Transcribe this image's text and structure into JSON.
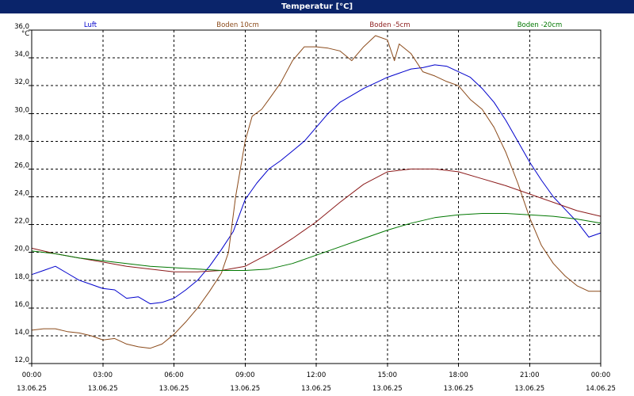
{
  "window": {
    "title": "Temperatur [°C]"
  },
  "chart_data": {
    "type": "line",
    "title": "Temperatur [°C]",
    "ylabel": "°C",
    "ylim": [
      12.0,
      36.0
    ],
    "y_ticks": [
      "12,0",
      "14,0",
      "16,0",
      "18,0",
      "20,0",
      "22,0",
      "24,0",
      "26,0",
      "28,0",
      "30,0",
      "32,0",
      "34,0",
      "36,0"
    ],
    "xlim": [
      0,
      24
    ],
    "x_ticks": [
      {
        "time": "00:00",
        "date": "13.06.25"
      },
      {
        "time": "03:00",
        "date": "13.06.25"
      },
      {
        "time": "06:00",
        "date": "13.06.25"
      },
      {
        "time": "09:00",
        "date": "13.06.25"
      },
      {
        "time": "12:00",
        "date": "13.06.25"
      },
      {
        "time": "15:00",
        "date": "13.06.25"
      },
      {
        "time": "18:00",
        "date": "13.06.25"
      },
      {
        "time": "21:00",
        "date": "13.06.25"
      },
      {
        "time": "00:00",
        "date": "14.06.25"
      }
    ],
    "grid": true,
    "legend_position": "top",
    "series": [
      {
        "name": "Luft",
        "color": "#0000cc",
        "points": [
          [
            0,
            18.4
          ],
          [
            0.5,
            18.7
          ],
          [
            1,
            19.0
          ],
          [
            1.5,
            18.5
          ],
          [
            2,
            18.0
          ],
          [
            2.5,
            17.7
          ],
          [
            3,
            17.4
          ],
          [
            3.5,
            17.3
          ],
          [
            4,
            16.7
          ],
          [
            4.5,
            16.8
          ],
          [
            5,
            16.3
          ],
          [
            5.5,
            16.4
          ],
          [
            6,
            16.7
          ],
          [
            6.5,
            17.3
          ],
          [
            7,
            18.0
          ],
          [
            7.5,
            19.0
          ],
          [
            8,
            20.2
          ],
          [
            8.5,
            21.5
          ],
          [
            9,
            23.8
          ],
          [
            9.5,
            25.0
          ],
          [
            10,
            26.0
          ],
          [
            10.5,
            26.6
          ],
          [
            11,
            27.3
          ],
          [
            11.5,
            28.0
          ],
          [
            12,
            29.0
          ],
          [
            12.5,
            30.0
          ],
          [
            13,
            30.8
          ],
          [
            13.5,
            31.3
          ],
          [
            14,
            31.8
          ],
          [
            14.5,
            32.2
          ],
          [
            15,
            32.6
          ],
          [
            15.5,
            32.9
          ],
          [
            16,
            33.2
          ],
          [
            16.5,
            33.3
          ],
          [
            17,
            33.5
          ],
          [
            17.5,
            33.4
          ],
          [
            18,
            33.0
          ],
          [
            18.5,
            32.6
          ],
          [
            19,
            31.8
          ],
          [
            19.5,
            30.8
          ],
          [
            20,
            29.5
          ],
          [
            20.5,
            28.0
          ],
          [
            21,
            26.5
          ],
          [
            21.5,
            25.2
          ],
          [
            22,
            24.0
          ],
          [
            22.5,
            23.1
          ],
          [
            23,
            22.2
          ],
          [
            23.5,
            21.1
          ],
          [
            24,
            21.4
          ]
        ]
      },
      {
        "name": "Boden 10cm",
        "color": "#8b4a1a",
        "points": [
          [
            0,
            14.4
          ],
          [
            0.5,
            14.5
          ],
          [
            1,
            14.5
          ],
          [
            1.5,
            14.3
          ],
          [
            2,
            14.2
          ],
          [
            2.5,
            14.0
          ],
          [
            3,
            13.7
          ],
          [
            3.5,
            13.8
          ],
          [
            4,
            13.4
          ],
          [
            4.5,
            13.2
          ],
          [
            5,
            13.1
          ],
          [
            5.5,
            13.4
          ],
          [
            6,
            14.1
          ],
          [
            6.5,
            15.0
          ],
          [
            7,
            16.0
          ],
          [
            7.5,
            17.2
          ],
          [
            8,
            18.5
          ],
          [
            8.3,
            20.0
          ],
          [
            8.6,
            24.0
          ],
          [
            9,
            28.0
          ],
          [
            9.3,
            29.8
          ],
          [
            9.7,
            30.3
          ],
          [
            10,
            31.0
          ],
          [
            10.5,
            32.2
          ],
          [
            11,
            33.8
          ],
          [
            11.5,
            34.8
          ],
          [
            12,
            34.8
          ],
          [
            12.5,
            34.7
          ],
          [
            13,
            34.5
          ],
          [
            13.5,
            33.8
          ],
          [
            14,
            34.8
          ],
          [
            14.5,
            35.6
          ],
          [
            15,
            35.3
          ],
          [
            15.3,
            33.8
          ],
          [
            15.5,
            35.0
          ],
          [
            16,
            34.3
          ],
          [
            16.5,
            33.0
          ],
          [
            17,
            32.7
          ],
          [
            17.5,
            32.3
          ],
          [
            18,
            32.0
          ],
          [
            18.5,
            31.0
          ],
          [
            19,
            30.3
          ],
          [
            19.5,
            29.0
          ],
          [
            20,
            27.2
          ],
          [
            20.5,
            25.0
          ],
          [
            21,
            22.5
          ],
          [
            21.5,
            20.5
          ],
          [
            22,
            19.2
          ],
          [
            22.5,
            18.3
          ],
          [
            23,
            17.6
          ],
          [
            23.5,
            17.2
          ],
          [
            24,
            17.2
          ]
        ]
      },
      {
        "name": "Boden -5cm",
        "color": "#8b1a1a",
        "points": [
          [
            0,
            20.3
          ],
          [
            1,
            19.9
          ],
          [
            2,
            19.6
          ],
          [
            3,
            19.3
          ],
          [
            4,
            19.0
          ],
          [
            5,
            18.8
          ],
          [
            6,
            18.6
          ],
          [
            7,
            18.6
          ],
          [
            8,
            18.7
          ],
          [
            9,
            19.0
          ],
          [
            10,
            19.9
          ],
          [
            11,
            21.0
          ],
          [
            12,
            22.2
          ],
          [
            13,
            23.6
          ],
          [
            14,
            24.9
          ],
          [
            15,
            25.8
          ],
          [
            16,
            26.0
          ],
          [
            17,
            26.0
          ],
          [
            18,
            25.8
          ],
          [
            19,
            25.3
          ],
          [
            20,
            24.8
          ],
          [
            21,
            24.2
          ],
          [
            22,
            23.6
          ],
          [
            23,
            23.0
          ],
          [
            24,
            22.6
          ]
        ]
      },
      {
        "name": "Boden -20cm",
        "color": "#007700",
        "points": [
          [
            0,
            20.1
          ],
          [
            1,
            19.9
          ],
          [
            2,
            19.6
          ],
          [
            3,
            19.4
          ],
          [
            4,
            19.2
          ],
          [
            5,
            19.0
          ],
          [
            6,
            18.9
          ],
          [
            7,
            18.8
          ],
          [
            8,
            18.7
          ],
          [
            9,
            18.7
          ],
          [
            10,
            18.8
          ],
          [
            11,
            19.2
          ],
          [
            12,
            19.8
          ],
          [
            13,
            20.4
          ],
          [
            14,
            21.0
          ],
          [
            15,
            21.6
          ],
          [
            16,
            22.1
          ],
          [
            17,
            22.5
          ],
          [
            18,
            22.7
          ],
          [
            19,
            22.8
          ],
          [
            20,
            22.8
          ],
          [
            21,
            22.7
          ],
          [
            22,
            22.6
          ],
          [
            23,
            22.4
          ],
          [
            24,
            22.1
          ]
        ]
      }
    ]
  }
}
